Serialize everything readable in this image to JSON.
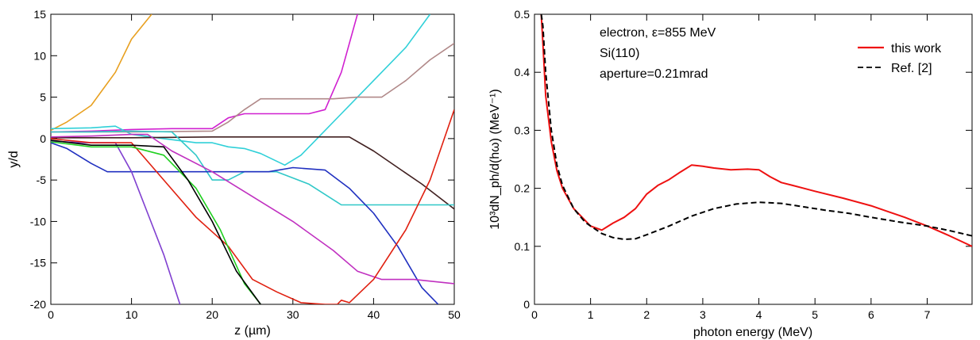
{
  "chart_data": [
    {
      "type": "line",
      "title": "",
      "xlabel": "z (µm)",
      "ylabel": "y/d",
      "xlim": [
        0,
        50
      ],
      "ylim": [
        -20,
        15
      ],
      "xticks": [
        0,
        10,
        20,
        30,
        40,
        50
      ],
      "yticks": [
        -20,
        -15,
        -10,
        -5,
        0,
        5,
        10,
        15
      ],
      "grid": false,
      "legend": "none",
      "series": [
        {
          "color": "#e8a020",
          "x": [
            0,
            2,
            5,
            8,
            10,
            12.5
          ],
          "y": [
            1.0,
            2.0,
            4.0,
            8.0,
            12.0,
            15.0
          ]
        },
        {
          "color": "#d020d0",
          "x": [
            0,
            5,
            10,
            15,
            20,
            22,
            24,
            26,
            28,
            30,
            32,
            34,
            36,
            38
          ],
          "y": [
            0.8,
            0.9,
            1.1,
            1.2,
            1.2,
            2.5,
            3.0,
            3.0,
            3.0,
            3.0,
            3.0,
            3.5,
            8.0,
            15.0
          ]
        },
        {
          "color": "#30d0d8",
          "x": [
            0,
            5,
            8,
            10,
            14,
            18,
            20,
            22,
            24,
            26,
            29,
            31,
            33,
            36,
            40,
            44,
            47
          ],
          "y": [
            1.2,
            1.3,
            1.5,
            0.5,
            0.0,
            -0.5,
            -0.5,
            -1.0,
            -1.2,
            -1.8,
            -3.2,
            -2.0,
            0.0,
            3.0,
            7.0,
            11.0,
            15.0
          ]
        },
        {
          "color": "#b08888",
          "x": [
            0,
            10,
            20,
            22,
            24,
            26,
            30,
            35,
            38,
            41,
            44,
            47,
            50
          ],
          "y": [
            0.8,
            0.8,
            0.9,
            2.0,
            3.5,
            4.8,
            4.8,
            4.8,
            5.0,
            5.0,
            7.0,
            9.5,
            11.5
          ]
        },
        {
          "color": "#402020",
          "x": [
            0,
            10,
            20,
            30,
            37,
            40,
            43,
            46,
            50
          ],
          "y": [
            0.1,
            0.1,
            0.2,
            0.2,
            0.2,
            -1.5,
            -3.5,
            -5.5,
            -8.5
          ]
        },
        {
          "color": "#30c8c8",
          "x": [
            0,
            5,
            10,
            15,
            18,
            20,
            22,
            24,
            28,
            32,
            36,
            40,
            45,
            50
          ],
          "y": [
            0.8,
            0.8,
            0.9,
            0.8,
            -2.0,
            -5.0,
            -5.0,
            -4.0,
            -4.0,
            -5.5,
            -8.0,
            -8.0,
            -8.0,
            -8.0
          ]
        },
        {
          "color": "#2030c0",
          "x": [
            0,
            2,
            5,
            7,
            10,
            14,
            20,
            27,
            30,
            34,
            37,
            40,
            43,
            46,
            48
          ],
          "y": [
            -0.5,
            -1.2,
            -3.0,
            -4.0,
            -4.0,
            -4.0,
            -4.0,
            -4.0,
            -3.5,
            -3.8,
            -6.0,
            -9.0,
            -13.0,
            -18.0,
            -20.0
          ]
        },
        {
          "color": "#c030c0",
          "x": [
            0,
            5,
            10,
            12,
            15,
            20,
            25,
            30,
            35,
            38,
            41,
            45,
            50
          ],
          "y": [
            0.2,
            0.3,
            0.5,
            0.5,
            -1.5,
            -4.0,
            -7.0,
            -10.0,
            -13.5,
            -16.0,
            -17.0,
            -17.0,
            -17.5
          ]
        },
        {
          "color": "#8040d0",
          "x": [
            0,
            4,
            8,
            10,
            12,
            14,
            16
          ],
          "y": [
            -0.3,
            -0.5,
            -0.5,
            -4.0,
            -9.0,
            -14.0,
            -20.0
          ]
        },
        {
          "color": "#e02010",
          "x": [
            0,
            5,
            10,
            14,
            18,
            22,
            25,
            28,
            31,
            34,
            35.5,
            36,
            37,
            40,
            44,
            47,
            50
          ],
          "y": [
            0.0,
            -0.5,
            -0.5,
            -5.0,
            -9.5,
            -13.0,
            -17.0,
            -18.5,
            -19.8,
            -20.0,
            -20.0,
            -19.5,
            -19.8,
            -17.0,
            -11.0,
            -5.0,
            3.5
          ]
        },
        {
          "color": "#20d020",
          "x": [
            0,
            5,
            10,
            14,
            18,
            21,
            24,
            26
          ],
          "y": [
            -0.4,
            -1.0,
            -1.0,
            -2.0,
            -6.0,
            -11.0,
            -17.5,
            -20.0
          ]
        },
        {
          "color": "#000000",
          "x": [
            0,
            5,
            10,
            14,
            17,
            20,
            23,
            26
          ],
          "y": [
            -0.2,
            -0.8,
            -0.8,
            -1.0,
            -5.0,
            -10.0,
            -16.0,
            -20.0
          ]
        }
      ]
    },
    {
      "type": "line",
      "title": "",
      "xlabel": "photon energy (MeV)",
      "ylabel": "10³dN_ph/d(hω) (MeV⁻¹)",
      "xlim": [
        0,
        7.8
      ],
      "ylim": [
        0,
        0.5
      ],
      "xticks": [
        0,
        1,
        2,
        3,
        4,
        5,
        6,
        7
      ],
      "yticks": [
        0,
        0.1,
        0.2,
        0.3,
        0.4,
        0.5
      ],
      "grid": false,
      "legend": "top-right",
      "annotations": [
        "electron, ε=855 MeV",
        "Si(110)",
        "aperture=0.21mrad"
      ],
      "series": [
        {
          "name": "this work",
          "color": "#ee1111",
          "dash": "solid",
          "x": [
            0.12,
            0.15,
            0.2,
            0.3,
            0.4,
            0.5,
            0.7,
            0.9,
            1.0,
            1.2,
            1.4,
            1.6,
            1.8,
            2.0,
            2.2,
            2.4,
            2.6,
            2.8,
            3.0,
            3.2,
            3.5,
            3.8,
            4.0,
            4.2,
            4.4,
            4.6,
            5.0,
            5.5,
            6.0,
            6.3,
            6.6,
            7.0,
            7.4,
            7.8
          ],
          "y": [
            0.5,
            0.45,
            0.36,
            0.28,
            0.23,
            0.2,
            0.165,
            0.145,
            0.135,
            0.128,
            0.14,
            0.15,
            0.165,
            0.19,
            0.205,
            0.215,
            0.228,
            0.24,
            0.238,
            0.235,
            0.232,
            0.233,
            0.232,
            0.22,
            0.21,
            0.205,
            0.195,
            0.183,
            0.17,
            0.16,
            0.15,
            0.135,
            0.118,
            0.1
          ]
        },
        {
          "name": "Ref. [2]",
          "color": "#000000",
          "dash": "dashed",
          "x": [
            0.12,
            0.15,
            0.2,
            0.3,
            0.4,
            0.5,
            0.7,
            0.9,
            1.0,
            1.2,
            1.4,
            1.6,
            1.8,
            2.0,
            2.4,
            2.8,
            3.2,
            3.6,
            4.0,
            4.4,
            4.8,
            5.2,
            5.6,
            6.0,
            6.5,
            7.0,
            7.4,
            7.8
          ],
          "y": [
            0.5,
            0.48,
            0.4,
            0.3,
            0.24,
            0.205,
            0.165,
            0.142,
            0.135,
            0.122,
            0.115,
            0.112,
            0.113,
            0.12,
            0.135,
            0.152,
            0.165,
            0.173,
            0.176,
            0.174,
            0.168,
            0.162,
            0.157,
            0.15,
            0.142,
            0.135,
            0.127,
            0.118
          ]
        }
      ]
    }
  ]
}
